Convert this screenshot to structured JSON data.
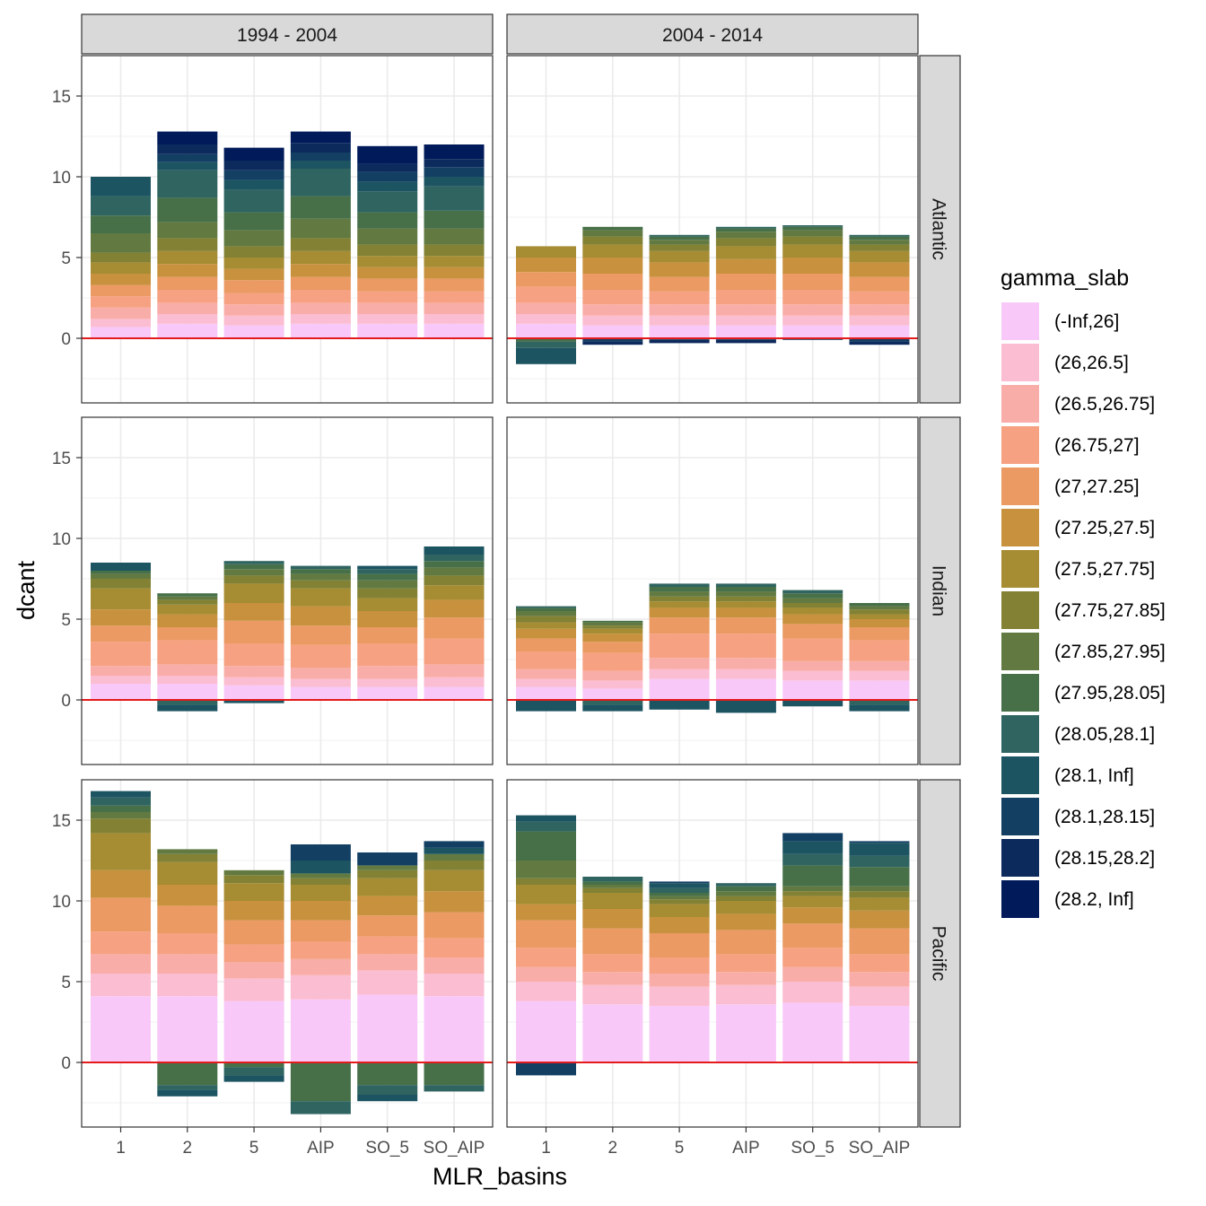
{
  "chart_data": {
    "type": "bar",
    "stacked": true,
    "xlabel": "MLR_basins",
    "ylabel": "dcant",
    "ylim": [
      -4,
      17.5
    ],
    "yticks": [
      0,
      5,
      10,
      15
    ],
    "categories": [
      "1",
      "2",
      "5",
      "AIP",
      "SO_5",
      "SO_AIP"
    ],
    "col_facets": [
      "1994 - 2004",
      "2004 - 2014"
    ],
    "row_facets": [
      "Atlantic",
      "Indian",
      "Pacific"
    ],
    "zero_line_color": "#e41a1c",
    "legend": {
      "title": "gamma_slab",
      "position": "right",
      "levels": [
        "(-Inf,26]",
        "(26,26.5]",
        "(26.5,26.75]",
        "(26.75,27]",
        "(27,27.25]",
        "(27.25,27.5]",
        "(27.5,27.75]",
        "(27.75,27.85]",
        "(27.85,27.95]",
        "(27.95,28.05]",
        "(28.05,28.1]",
        "(28.1, Inf]",
        "(28.1,28.15]",
        "(28.15,28.2]",
        "(28.2, Inf]"
      ],
      "colors": [
        "#f8c9f8",
        "#fbbdd1",
        "#f9ada8",
        "#f6a182",
        "#ea9a62",
        "#c8913e",
        "#a68c32",
        "#828134",
        "#627a41",
        "#477049",
        "#2f6460",
        "#1d5462",
        "#133f63",
        "#0d2a5d",
        "#001a5a"
      ]
    },
    "panels": [
      {
        "col": 0,
        "row": 0,
        "bars": [
          [
            0.7,
            0.5,
            0.7,
            0.7,
            0.7,
            0.7,
            0.7,
            0.6,
            1.2,
            1.1,
            1.2,
            1.2,
            0,
            0,
            0
          ],
          [
            0.9,
            0.6,
            0.7,
            0.8,
            0.8,
            0.8,
            0.8,
            0.8,
            1.0,
            1.5,
            1.7,
            0.5,
            0.5,
            0.6,
            0.8
          ],
          [
            0.8,
            0.6,
            0.7,
            0.7,
            0.8,
            0.7,
            0.7,
            0.7,
            1.0,
            1.1,
            1.4,
            0.6,
            0.6,
            0.6,
            0.8
          ],
          [
            0.9,
            0.6,
            0.7,
            0.8,
            0.8,
            0.8,
            0.8,
            0.8,
            1.2,
            1.4,
            1.7,
            0.5,
            0.5,
            0.6,
            0.7
          ],
          [
            0.9,
            0.6,
            0.7,
            0.7,
            0.8,
            0.7,
            0.7,
            0.7,
            1.0,
            1.0,
            1.3,
            0.6,
            0.6,
            0.5,
            1.1
          ],
          [
            0.9,
            0.6,
            0.7,
            0.7,
            0.8,
            0.7,
            0.7,
            0.7,
            1.0,
            1.1,
            1.5,
            0.6,
            0.6,
            0.5,
            0.9
          ]
        ]
      },
      {
        "col": 1,
        "row": 0,
        "bars": [
          [
            0.9,
            0.6,
            0.7,
            1.0,
            0.9,
            0.9,
            0.7,
            0,
            0,
            -0.2,
            -0.4,
            -1.0,
            0,
            0,
            0
          ],
          [
            0.8,
            0.6,
            0.7,
            0.9,
            1.0,
            1.0,
            0.8,
            0.5,
            0.4,
            0.2,
            0,
            0,
            -0.2,
            -0.2,
            0
          ],
          [
            0.8,
            0.6,
            0.7,
            0.8,
            0.9,
            0.9,
            0.7,
            0.4,
            0.3,
            0.2,
            0.1,
            0,
            -0.1,
            -0.2,
            0
          ],
          [
            0.8,
            0.6,
            0.7,
            0.9,
            1.0,
            0.9,
            0.8,
            0.5,
            0.4,
            0.2,
            0.1,
            0,
            -0.1,
            -0.2,
            0
          ],
          [
            0.8,
            0.6,
            0.7,
            0.9,
            1.0,
            1.0,
            0.8,
            0.5,
            0.4,
            0.2,
            0.1,
            0,
            -0.1,
            0,
            0
          ],
          [
            0.8,
            0.6,
            0.7,
            0.8,
            0.9,
            0.9,
            0.7,
            0.4,
            0.3,
            0.2,
            0.1,
            0,
            -0.2,
            -0.2,
            0
          ]
        ]
      },
      {
        "col": 0,
        "row": 1,
        "bars": [
          [
            1.0,
            0.5,
            0.6,
            1.5,
            1.0,
            1.0,
            1.3,
            0.6,
            0.3,
            0.2,
            0,
            0.5,
            0,
            0,
            0
          ],
          [
            1.0,
            0.5,
            0.7,
            1.5,
            0.8,
            0.8,
            0.6,
            0.3,
            0.2,
            0.2,
            -0.3,
            -0.4,
            0,
            0,
            0
          ],
          [
            0.9,
            0.5,
            0.7,
            1.4,
            1.4,
            1.1,
            1.2,
            0.5,
            0.4,
            0.3,
            0.2,
            -0.2,
            0,
            0,
            0
          ],
          [
            0.8,
            0.5,
            0.7,
            1.4,
            1.2,
            1.2,
            1.1,
            0.5,
            0.4,
            0.3,
            0.2,
            0,
            0,
            0,
            0
          ],
          [
            0.8,
            0.5,
            0.8,
            1.4,
            1.0,
            1.0,
            0.8,
            0.6,
            0.5,
            0.4,
            0.3,
            0.2,
            0,
            0,
            0
          ],
          [
            0.8,
            0.6,
            0.8,
            1.6,
            1.3,
            1.1,
            0.9,
            0.6,
            0.5,
            0.4,
            0.4,
            0.5,
            0,
            0,
            0
          ]
        ]
      },
      {
        "col": 1,
        "row": 1,
        "bars": [
          [
            0.8,
            0.5,
            0.6,
            1.1,
            0.8,
            0.6,
            0.4,
            0.4,
            0.3,
            0.2,
            0.1,
            -0.7,
            0,
            0,
            0
          ],
          [
            0.7,
            0.5,
            0.6,
            1.1,
            0.7,
            0.5,
            0.3,
            0.2,
            0.2,
            0.1,
            -0.3,
            -0.4,
            0,
            0,
            0
          ],
          [
            1.3,
            0.6,
            0.7,
            1.5,
            1.0,
            0.6,
            0.4,
            0.3,
            0.3,
            0.3,
            0.2,
            -0.6,
            0,
            0,
            0
          ],
          [
            1.3,
            0.6,
            0.7,
            1.5,
            1.0,
            0.6,
            0.4,
            0.3,
            0.3,
            0.3,
            0.2,
            -0.8,
            0,
            0,
            0
          ],
          [
            1.2,
            0.6,
            0.6,
            1.4,
            0.9,
            0.6,
            0.4,
            0.3,
            0.3,
            0.3,
            0.2,
            -0.4,
            0,
            0,
            0
          ],
          [
            1.2,
            0.6,
            0.6,
            1.3,
            0.8,
            0.5,
            0.3,
            0.3,
            0.2,
            0.2,
            -0.3,
            -0.4,
            0,
            0,
            0
          ]
        ]
      },
      {
        "col": 0,
        "row": 2,
        "bars": [
          [
            4.1,
            1.4,
            1.2,
            1.4,
            2.1,
            1.7,
            2.3,
            0.9,
            0.4,
            0.4,
            0.5,
            0.4,
            0,
            0,
            0
          ],
          [
            4.1,
            1.4,
            1.2,
            1.3,
            1.7,
            1.3,
            1.4,
            0.5,
            0.3,
            -1.4,
            -0.3,
            -0.4,
            0,
            0,
            0
          ],
          [
            3.8,
            1.4,
            1.0,
            1.1,
            1.5,
            1.2,
            1.1,
            0.5,
            0.3,
            -0.3,
            -0.5,
            -0.4,
            0,
            0,
            0
          ],
          [
            3.9,
            1.5,
            1.0,
            1.1,
            1.3,
            1.2,
            1.0,
            0.4,
            0.3,
            -2.4,
            -0.8,
            0.8,
            1.0,
            0,
            0
          ],
          [
            4.2,
            1.5,
            1.0,
            1.1,
            1.3,
            1.2,
            1.1,
            0.5,
            0.3,
            -1.4,
            -0.6,
            -0.4,
            0.8,
            0,
            0
          ],
          [
            4.1,
            1.4,
            1.0,
            1.2,
            1.6,
            1.3,
            1.3,
            0.6,
            0.4,
            -1.4,
            -0.4,
            0.4,
            0.4,
            0,
            0
          ]
        ]
      },
      {
        "col": 1,
        "row": 2,
        "bars": [
          [
            3.8,
            1.2,
            0.9,
            1.2,
            1.7,
            1.0,
            1.2,
            0.4,
            1.1,
            1.8,
            0.6,
            0.4,
            -0.8,
            0,
            0
          ],
          [
            3.6,
            1.2,
            0.8,
            1.1,
            1.6,
            1.2,
            1.0,
            0.3,
            0.2,
            0.2,
            0.3,
            0,
            0,
            0,
            0
          ],
          [
            3.5,
            1.2,
            0.8,
            1.0,
            1.5,
            1.0,
            0.8,
            0.3,
            0.2,
            0.2,
            0.3,
            0.3,
            0.1,
            0,
            0
          ],
          [
            3.6,
            1.2,
            0.8,
            1.1,
            1.5,
            1.0,
            0.8,
            0.3,
            0.3,
            0.3,
            0.2,
            0,
            0,
            0,
            0
          ],
          [
            3.7,
            1.3,
            0.9,
            1.2,
            1.5,
            1.0,
            0.7,
            0.3,
            0.3,
            1.3,
            0.7,
            0.8,
            0.5,
            0,
            0
          ],
          [
            3.5,
            1.2,
            0.9,
            1.1,
            1.6,
            1.1,
            0.8,
            0.4,
            0.3,
            1.2,
            0.7,
            0.8,
            0.1,
            0,
            0
          ]
        ]
      }
    ]
  }
}
